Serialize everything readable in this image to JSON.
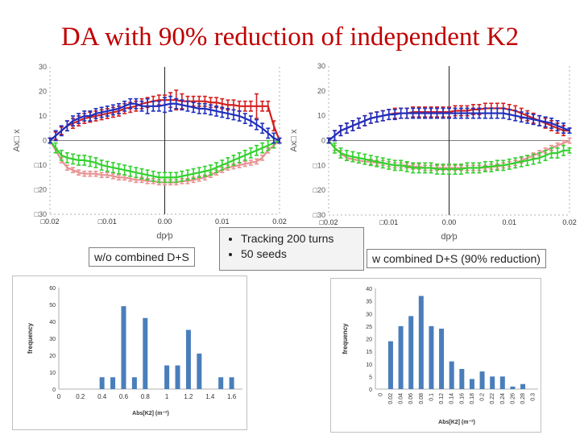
{
  "title": "DA with 90% reduction of independent K2",
  "labels": {
    "left": "w/o combined D+S",
    "right": "w combined D+S (90% reduction)"
  },
  "bullets": [
    "Tracking 200 turns",
    "50 seeds"
  ],
  "colors": {
    "red": "#d42020",
    "blue": "#1f2fbd",
    "green": "#33d12e",
    "pink": "#e89292",
    "bar": "#4a7ebb",
    "title": "#c00000"
  },
  "chart_data": [
    {
      "type": "line",
      "xlabel": "dp⁄p",
      "ylabel": "Ax□ x",
      "xlim": [
        -0.02,
        0.02
      ],
      "ylim": [
        -30,
        30
      ],
      "xticks": [
        -0.02,
        -0.01,
        0.0,
        0.01,
        0.02
      ],
      "xtick_labels": [
        "□0.02",
        "□0.01",
        "0.00",
        "0.01",
        "0.02"
      ],
      "yticks": [
        30,
        20,
        10,
        0,
        -10,
        -20,
        -30
      ],
      "ytick_labels": [
        "30",
        "20",
        "10",
        "0",
        "□10",
        "□20",
        "□30"
      ],
      "x": [
        -0.02,
        -0.019,
        -0.018,
        -0.017,
        -0.016,
        -0.015,
        -0.014,
        -0.013,
        -0.012,
        -0.011,
        -0.01,
        -0.009,
        -0.008,
        -0.007,
        -0.006,
        -0.005,
        -0.004,
        -0.003,
        -0.002,
        -0.001,
        0.0,
        0.001,
        0.002,
        0.003,
        0.004,
        0.005,
        0.006,
        0.007,
        0.008,
        0.009,
        0.01,
        0.011,
        0.012,
        0.013,
        0.014,
        0.015,
        0.016,
        0.017,
        0.018,
        0.019,
        0.02
      ],
      "series": [
        {
          "color": "red",
          "values": [
            0,
            2,
            4,
            6,
            7,
            8,
            9,
            9.5,
            10,
            10.5,
            11,
            11.5,
            12,
            13,
            13.5,
            14,
            15,
            15.5,
            16,
            16.5,
            16.5,
            16.5,
            16.5,
            16,
            16,
            16,
            16,
            16,
            15.5,
            15.5,
            15,
            14.5,
            14.5,
            14,
            14,
            14,
            14,
            14,
            14,
            6,
            0
          ],
          "err": [
            1,
            1.5,
            1.5,
            2,
            2,
            2,
            2,
            2,
            2,
            2,
            2,
            2,
            2,
            2,
            2,
            2,
            2,
            2,
            2,
            2,
            2,
            3,
            4,
            3,
            2,
            2,
            2,
            2,
            2,
            2,
            2,
            2,
            2,
            2,
            2,
            2,
            5,
            2,
            2,
            2,
            1
          ]
        },
        {
          "color": "blue",
          "values": [
            0,
            2,
            4,
            6,
            8,
            9,
            10,
            10,
            11,
            11.5,
            12,
            12.5,
            13,
            14,
            15,
            15,
            14,
            14,
            14,
            14,
            14.5,
            15,
            15,
            14.5,
            14,
            13.5,
            13,
            13,
            12.5,
            12,
            11.5,
            11,
            10.5,
            10,
            9,
            8,
            6.5,
            5,
            3,
            1,
            0
          ],
          "err": [
            1,
            2,
            2,
            2,
            2,
            2,
            2,
            2,
            2,
            2,
            2,
            2,
            2,
            2,
            2,
            2,
            2,
            3,
            2,
            2,
            3,
            3,
            2,
            2,
            2,
            2,
            2,
            2,
            2,
            2,
            2,
            2,
            2,
            2,
            2,
            2,
            2,
            2,
            2,
            2,
            1
          ]
        },
        {
          "color": "green",
          "values": [
            0,
            -3,
            -6,
            -7,
            -7.5,
            -8,
            -8,
            -8.5,
            -9,
            -10,
            -10.5,
            -11,
            -11.5,
            -12,
            -12.5,
            -13,
            -13.5,
            -14,
            -14.5,
            -15,
            -15,
            -15,
            -15,
            -14.5,
            -14,
            -13.5,
            -13,
            -12.5,
            -12,
            -11,
            -10,
            -9,
            -8,
            -7,
            -6,
            -5,
            -4,
            -3,
            -2,
            -1,
            0
          ],
          "err": [
            1,
            2,
            2,
            2,
            2,
            2,
            2,
            2,
            2,
            2,
            2,
            2,
            2,
            2,
            2,
            2,
            2,
            2,
            2,
            2,
            2,
            2,
            2,
            2,
            2,
            2,
            2,
            2,
            2,
            2,
            2,
            2,
            2,
            2,
            2,
            2,
            2,
            2,
            2,
            2,
            1
          ]
        },
        {
          "color": "pink",
          "values": [
            0,
            -4,
            -8,
            -11,
            -12,
            -13,
            -13.5,
            -13.5,
            -13.5,
            -14,
            -14,
            -14.5,
            -15,
            -15,
            -15.5,
            -16,
            -16,
            -16.5,
            -16.5,
            -17,
            -17,
            -17,
            -17,
            -16.5,
            -16.5,
            -16,
            -15.5,
            -15,
            -14,
            -13,
            -12,
            -11,
            -10.5,
            -10,
            -9.5,
            -9,
            -8.5,
            -7,
            -4,
            -2,
            0
          ],
          "err": [
            1,
            1,
            1,
            1,
            1,
            1,
            1,
            1,
            1,
            1,
            1,
            1,
            1,
            1,
            1,
            1,
            1,
            1,
            1,
            1,
            1,
            1,
            1,
            1,
            1,
            1,
            1,
            1,
            1,
            1,
            1,
            1,
            1,
            1,
            1,
            1,
            1,
            1,
            1,
            1,
            1
          ]
        }
      ]
    },
    {
      "type": "line",
      "xlabel": "dp⁄p",
      "ylabel": "Ax□ x",
      "xlim": [
        -0.02,
        0.02
      ],
      "ylim": [
        -30,
        30
      ],
      "xticks": [
        -0.02,
        -0.01,
        0.0,
        0.01,
        0.02
      ],
      "xtick_labels": [
        "□0.02",
        "□0.01",
        "0.00",
        "0.01",
        "0.02"
      ],
      "yticks": [
        30,
        20,
        10,
        0,
        -10,
        -20,
        -30
      ],
      "ytick_labels": [
        "30",
        "20",
        "10",
        "0",
        "□10",
        "□20",
        "□30"
      ],
      "x": [
        -0.02,
        -0.019,
        -0.018,
        -0.017,
        -0.016,
        -0.015,
        -0.014,
        -0.013,
        -0.012,
        -0.011,
        -0.01,
        -0.009,
        -0.008,
        -0.007,
        -0.006,
        -0.005,
        -0.004,
        -0.003,
        -0.002,
        -0.001,
        0.0,
        0.001,
        0.002,
        0.003,
        0.004,
        0.005,
        0.006,
        0.007,
        0.008,
        0.009,
        0.01,
        0.011,
        0.012,
        0.013,
        0.014,
        0.015,
        0.016,
        0.017,
        0.018,
        0.019,
        0.02
      ],
      "series": [
        {
          "color": "red",
          "values": [
            0,
            2,
            4,
            5,
            6,
            7,
            8,
            9,
            9.5,
            10,
            10.5,
            11,
            11,
            11,
            11.5,
            11.5,
            11.5,
            11.5,
            11.5,
            11.5,
            11.5,
            12,
            12,
            12,
            12.5,
            12.5,
            13,
            13,
            13,
            13,
            12.5,
            12,
            11,
            10,
            9,
            8,
            7,
            6,
            5,
            4,
            4
          ],
          "err": [
            1,
            2,
            2,
            2,
            2,
            2,
            2,
            2,
            2,
            2,
            2,
            2,
            2,
            2,
            2,
            2,
            2,
            2,
            2,
            2,
            2,
            2,
            2,
            2,
            2,
            2,
            2,
            2,
            2,
            2,
            2,
            2,
            2,
            2,
            2,
            2,
            2,
            2,
            2,
            2,
            1
          ]
        },
        {
          "color": "blue",
          "values": [
            0,
            2,
            4,
            5,
            6,
            7,
            8,
            9,
            9.5,
            10,
            10.5,
            10.5,
            11,
            11,
            11,
            11,
            11,
            11,
            11,
            11,
            11,
            11,
            11,
            11,
            11,
            11,
            11,
            11,
            11,
            11,
            10.5,
            10,
            9.5,
            9,
            8.5,
            8,
            7.5,
            7,
            6,
            5,
            4
          ],
          "err": [
            1,
            2,
            2,
            2,
            2,
            2,
            2,
            2,
            2,
            2,
            2,
            2,
            2,
            2,
            2,
            2,
            2,
            2,
            2,
            2,
            2,
            2,
            2,
            2,
            2,
            2,
            2,
            2,
            2,
            2,
            2,
            2,
            2,
            2,
            2,
            2,
            2,
            2,
            2,
            2,
            1
          ]
        },
        {
          "color": "green",
          "values": [
            0,
            -3,
            -5,
            -6,
            -6.5,
            -7,
            -7.5,
            -8,
            -8.5,
            -9,
            -9.5,
            -10,
            -10,
            -10.5,
            -11,
            -11,
            -11,
            -11,
            -11.5,
            -11.5,
            -11.5,
            -11.5,
            -11.5,
            -11,
            -11,
            -11,
            -10.5,
            -10.5,
            -10,
            -10,
            -9.5,
            -9,
            -8.5,
            -8,
            -7.5,
            -7,
            -6,
            -5,
            -5,
            -4,
            -4
          ],
          "err": [
            1,
            2,
            2,
            2,
            2,
            2,
            2,
            2,
            2,
            2,
            2,
            2,
            2,
            2,
            2,
            2,
            2,
            2,
            2,
            2,
            2,
            2,
            2,
            2,
            2,
            2,
            2,
            2,
            2,
            2,
            2,
            2,
            2,
            2,
            2,
            2,
            2,
            2,
            2,
            2,
            1
          ]
        },
        {
          "color": "pink",
          "values": [
            0,
            -3,
            -5,
            -7,
            -7.5,
            -8,
            -8.5,
            -8.5,
            -9,
            -9,
            -9.5,
            -10,
            -10,
            -10,
            -10.5,
            -10.5,
            -11,
            -11,
            -11,
            -11,
            -11,
            -11,
            -11,
            -11,
            -11,
            -11,
            -11,
            -10.5,
            -10.5,
            -10,
            -9.5,
            -9,
            -8,
            -7,
            -6,
            -5,
            -4,
            -3,
            -2,
            -1,
            0
          ],
          "err": [
            1,
            1,
            1,
            1,
            1,
            1,
            1,
            1,
            1,
            1,
            1,
            1,
            1,
            1,
            1,
            1,
            1,
            1,
            1,
            1,
            1,
            1,
            1,
            1,
            1,
            1,
            1,
            1,
            1,
            1,
            1,
            1,
            1,
            1,
            1,
            1,
            1,
            1,
            1,
            1,
            1
          ]
        }
      ]
    },
    {
      "type": "bar",
      "xlabel": "Abs[K2] (m⁻²)",
      "ylabel": "frequency",
      "ylim": [
        0,
        60
      ],
      "yticks": [
        0,
        10,
        20,
        30,
        40,
        50,
        60
      ],
      "xlim": [
        0,
        1.7
      ],
      "xticks": [
        0,
        0.2,
        0.4,
        0.6,
        0.8,
        1,
        1.2,
        1.4,
        1.6
      ],
      "xtick_labels": [
        "0",
        "0.2",
        "0.4",
        "0.6",
        "0.8",
        "1",
        "1.2",
        "1.4",
        "1.6"
      ],
      "x": [
        0.4,
        0.5,
        0.6,
        0.7,
        0.8,
        1.0,
        1.1,
        1.2,
        1.3,
        1.5,
        1.6
      ],
      "values": [
        7,
        7,
        49,
        7,
        42,
        14,
        14,
        35,
        21,
        7,
        7
      ]
    },
    {
      "type": "bar",
      "xlabel": "Abs[K2] (m⁻²)",
      "ylabel": "frequency",
      "ylim": [
        0,
        40
      ],
      "yticks": [
        0,
        5,
        10,
        15,
        20,
        25,
        30,
        35,
        40
      ],
      "categories": [
        "0",
        "0.02",
        "0.04",
        "0.06",
        "0.08",
        "0.1",
        "0.12",
        "0.14",
        "0.16",
        "0.18",
        "0.2",
        "0.22",
        "0.24",
        "0.26",
        "0.28",
        "0.3"
      ],
      "values": [
        0,
        19,
        25,
        29,
        37,
        25,
        24,
        11,
        8,
        4,
        7,
        5,
        5,
        1,
        2,
        0
      ]
    }
  ]
}
